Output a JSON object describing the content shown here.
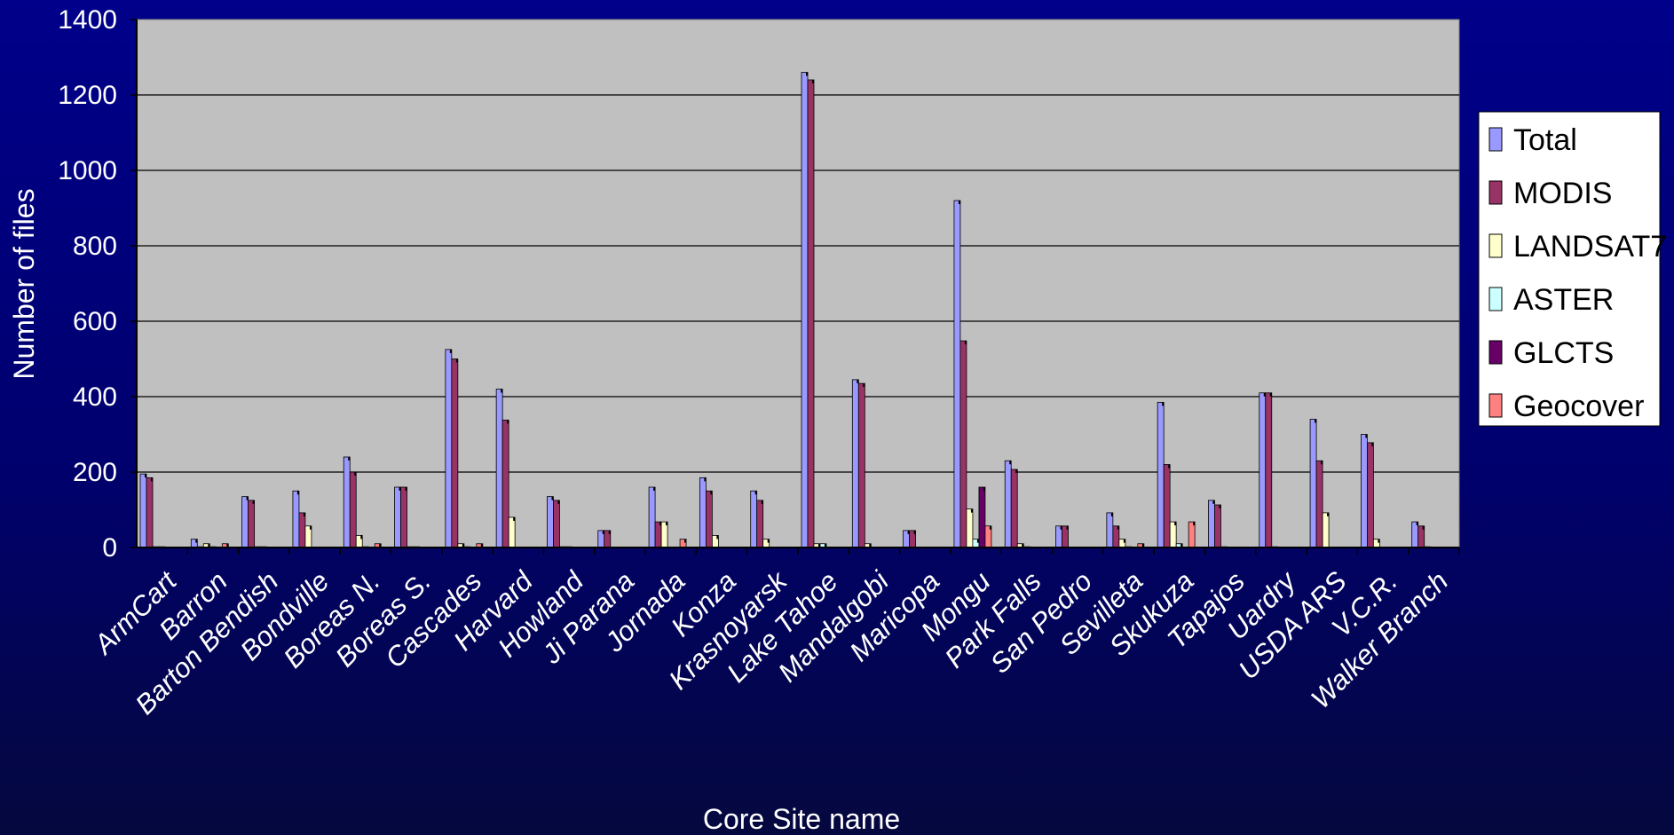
{
  "chart_data": {
    "type": "bar",
    "title": "",
    "xlabel": "Core Site name",
    "ylabel": "Number of files",
    "ylim": [
      0,
      1400
    ],
    "yticks": [
      0,
      200,
      400,
      600,
      800,
      1000,
      1200,
      1400
    ],
    "grid": true,
    "legend_position": "right",
    "background_color": "#00008a",
    "plot_color": "#c0c0c0",
    "categories": [
      "ArmCart",
      "Barron",
      "Barton Bendish",
      "Bondville",
      "Boreas N.",
      "Boreas S.",
      "Cascades",
      "Harvard",
      "Howland",
      "Ji Parana",
      "Jornada",
      "Konza",
      "Krasnoyarsk",
      "Lake Tahoe",
      "Mandalgobi",
      "Maricopa",
      "Mongu",
      "Park Falls",
      "San Pedro",
      "Sevilleta",
      "Skukuza",
      "Tapajos",
      "Uardry",
      "USDA ARS",
      "V.C.R.",
      "Walker Branch"
    ],
    "series": [
      {
        "name": "Total",
        "color": "#9999ff",
        "values": [
          195,
          22,
          135,
          150,
          240,
          160,
          525,
          420,
          135,
          45,
          160,
          185,
          150,
          1260,
          445,
          45,
          920,
          230,
          57,
          92,
          385,
          125,
          410,
          340,
          300,
          68
        ]
      },
      {
        "name": "MODIS",
        "color": "#993366",
        "values": [
          185,
          2,
          125,
          92,
          200,
          160,
          500,
          338,
          125,
          45,
          68,
          150,
          125,
          1240,
          435,
          45,
          548,
          207,
          57,
          57,
          220,
          113,
          410,
          230,
          278,
          57
        ]
      },
      {
        "name": "LANDSAT7",
        "color": "#ffffcc",
        "values": [
          2,
          10,
          2,
          57,
          32,
          2,
          10,
          80,
          2,
          0,
          68,
          32,
          22,
          10,
          10,
          0,
          102,
          10,
          0,
          22,
          68,
          2,
          2,
          92,
          22,
          2
        ]
      },
      {
        "name": "ASTER",
        "color": "#ccffff",
        "values": [
          2,
          2,
          2,
          0,
          2,
          2,
          2,
          0,
          2,
          0,
          0,
          0,
          0,
          10,
          0,
          0,
          22,
          2,
          0,
          2,
          10,
          0,
          0,
          0,
          0,
          0
        ]
      },
      {
        "name": "GLCTS",
        "color": "#660066",
        "values": [
          0,
          0,
          0,
          0,
          0,
          0,
          0,
          0,
          0,
          0,
          0,
          0,
          0,
          0,
          0,
          0,
          160,
          0,
          0,
          0,
          0,
          0,
          0,
          0,
          0,
          0
        ]
      },
      {
        "name": "Geocover",
        "color": "#ff8080",
        "values": [
          0,
          10,
          0,
          0,
          10,
          0,
          10,
          0,
          0,
          0,
          22,
          0,
          0,
          0,
          0,
          0,
          57,
          0,
          0,
          10,
          68,
          0,
          0,
          0,
          0,
          0
        ]
      }
    ]
  }
}
